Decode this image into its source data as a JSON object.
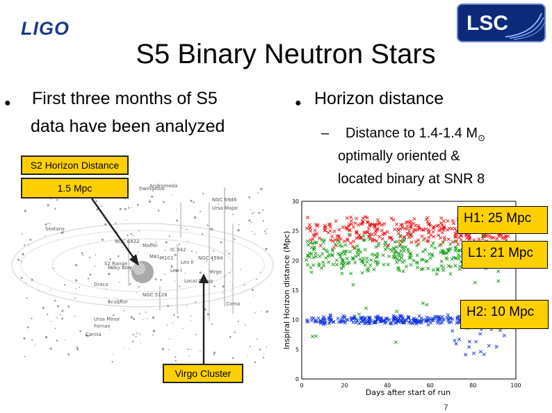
{
  "header": {
    "ligo_logo": "LIGO",
    "lsc_logo": "LSC",
    "title": "S5 Binary Neutron Stars"
  },
  "left": {
    "bullet": "●",
    "line1": "First three months of S5",
    "line2": "data have been analyzed",
    "callout_horizon": "S2 Horizon Distance",
    "callout_mpc": "1.5 Mpc",
    "callout_virgo": "Virgo Cluster",
    "map_labels": [
      "Andromeda",
      "NGC 6946",
      "NGC 4594",
      "Virgo",
      "Leo I",
      "Leo II",
      "Draco",
      "Ursa Minor",
      "Sculptor",
      "Fornax",
      "Carina",
      "Sextans",
      "NGC 6822",
      "M81",
      "M101",
      "NGC 5128",
      "Milky Way",
      "Coma",
      "Dwingeloo",
      "Maffei",
      "IC 342",
      "Ursa Major",
      "S2 Range",
      "Local Group"
    ]
  },
  "right": {
    "bullet": "●",
    "heading": "Horizon distance",
    "dash": "–",
    "sub1": "Distance to 1.4-1.4 M",
    "sun_symbol": "⊙",
    "sub2": "optimally oriented &",
    "sub3": "located binary at SNR 8",
    "h1_label": "H1: 25 Mpc",
    "l1_label": "L1: 21 Mpc",
    "h2_label": "H2: 10 Mpc"
  },
  "chart_data": {
    "type": "scatter",
    "xlabel": "Days after start of run",
    "ylabel": "Inspiral Horizon distance (Mpc)",
    "xlim": [
      0,
      100
    ],
    "ylim": [
      0,
      30
    ],
    "xticks": [
      0,
      20,
      40,
      60,
      80,
      100
    ],
    "yticks": [
      0,
      5,
      10,
      15,
      20,
      25,
      30
    ],
    "series": [
      {
        "name": "H1",
        "color": "#ee1111",
        "mean": 25,
        "spread": 1.6,
        "x_end": 97
      },
      {
        "name": "L1",
        "color": "#119911",
        "mean": 21,
        "spread": 2.0,
        "x_end": 97
      },
      {
        "name": "H2",
        "color": "#1133dd",
        "mean": 10,
        "spread": 0.5,
        "x_end": 97
      }
    ]
  },
  "footer": {
    "page_number": "7"
  }
}
